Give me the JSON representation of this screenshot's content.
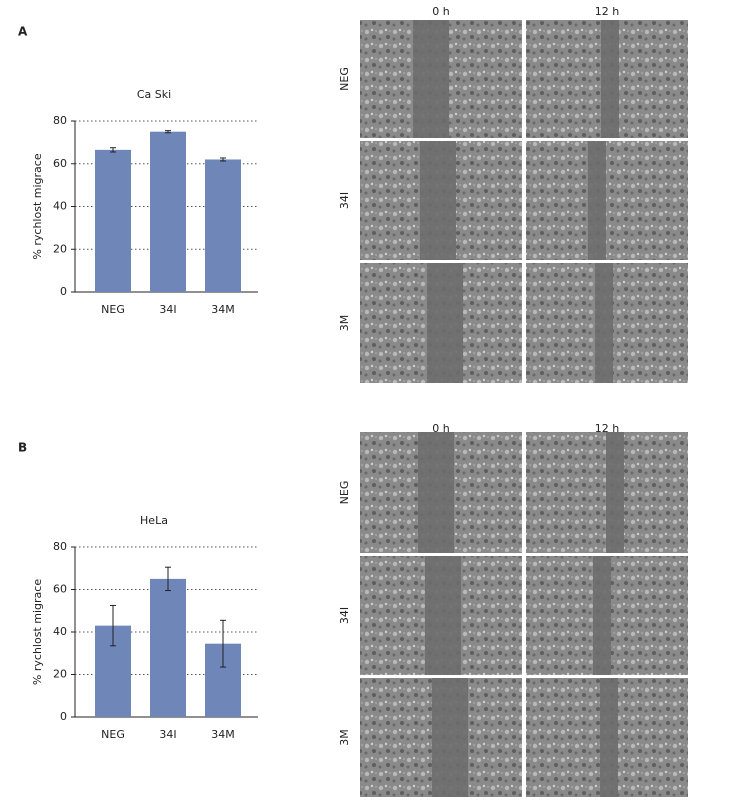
{
  "chart_data": [
    {
      "type": "bar",
      "title": "Ca Ski",
      "y_label": "% rychlost migrace",
      "categories": [
        "NEG",
        "34I",
        "34M"
      ],
      "series": [
        {
          "color": "#6f86b8",
          "values": [
            66.5,
            75,
            62
          ],
          "errors": [
            1,
            0.5,
            0.7
          ]
        }
      ],
      "ylim": [
        0,
        80
      ],
      "yticks": [
        0,
        20,
        40,
        60,
        80
      ],
      "grid": true
    },
    {
      "type": "bar",
      "title": "HeLa",
      "y_label": "% rychlost migrace",
      "categories": [
        "NEG",
        "34I",
        "34M"
      ],
      "series": [
        {
          "color": "#6f86b8",
          "values": [
            43,
            65,
            34.5
          ],
          "errors": [
            9.5,
            5.5,
            11
          ]
        }
      ],
      "ylim": [
        0,
        80
      ],
      "yticks": [
        0,
        20,
        40,
        60,
        80
      ],
      "grid": true
    }
  ],
  "figure_panels": [
    {
      "label": "A",
      "columns": [
        "0 h",
        "12 h"
      ],
      "rows": [
        "NEG",
        "34I",
        "3M"
      ]
    },
    {
      "label": "B",
      "columns": [
        "0 h",
        "12 h"
      ],
      "rows": [
        "NEG",
        "34I",
        "3M"
      ]
    }
  ]
}
